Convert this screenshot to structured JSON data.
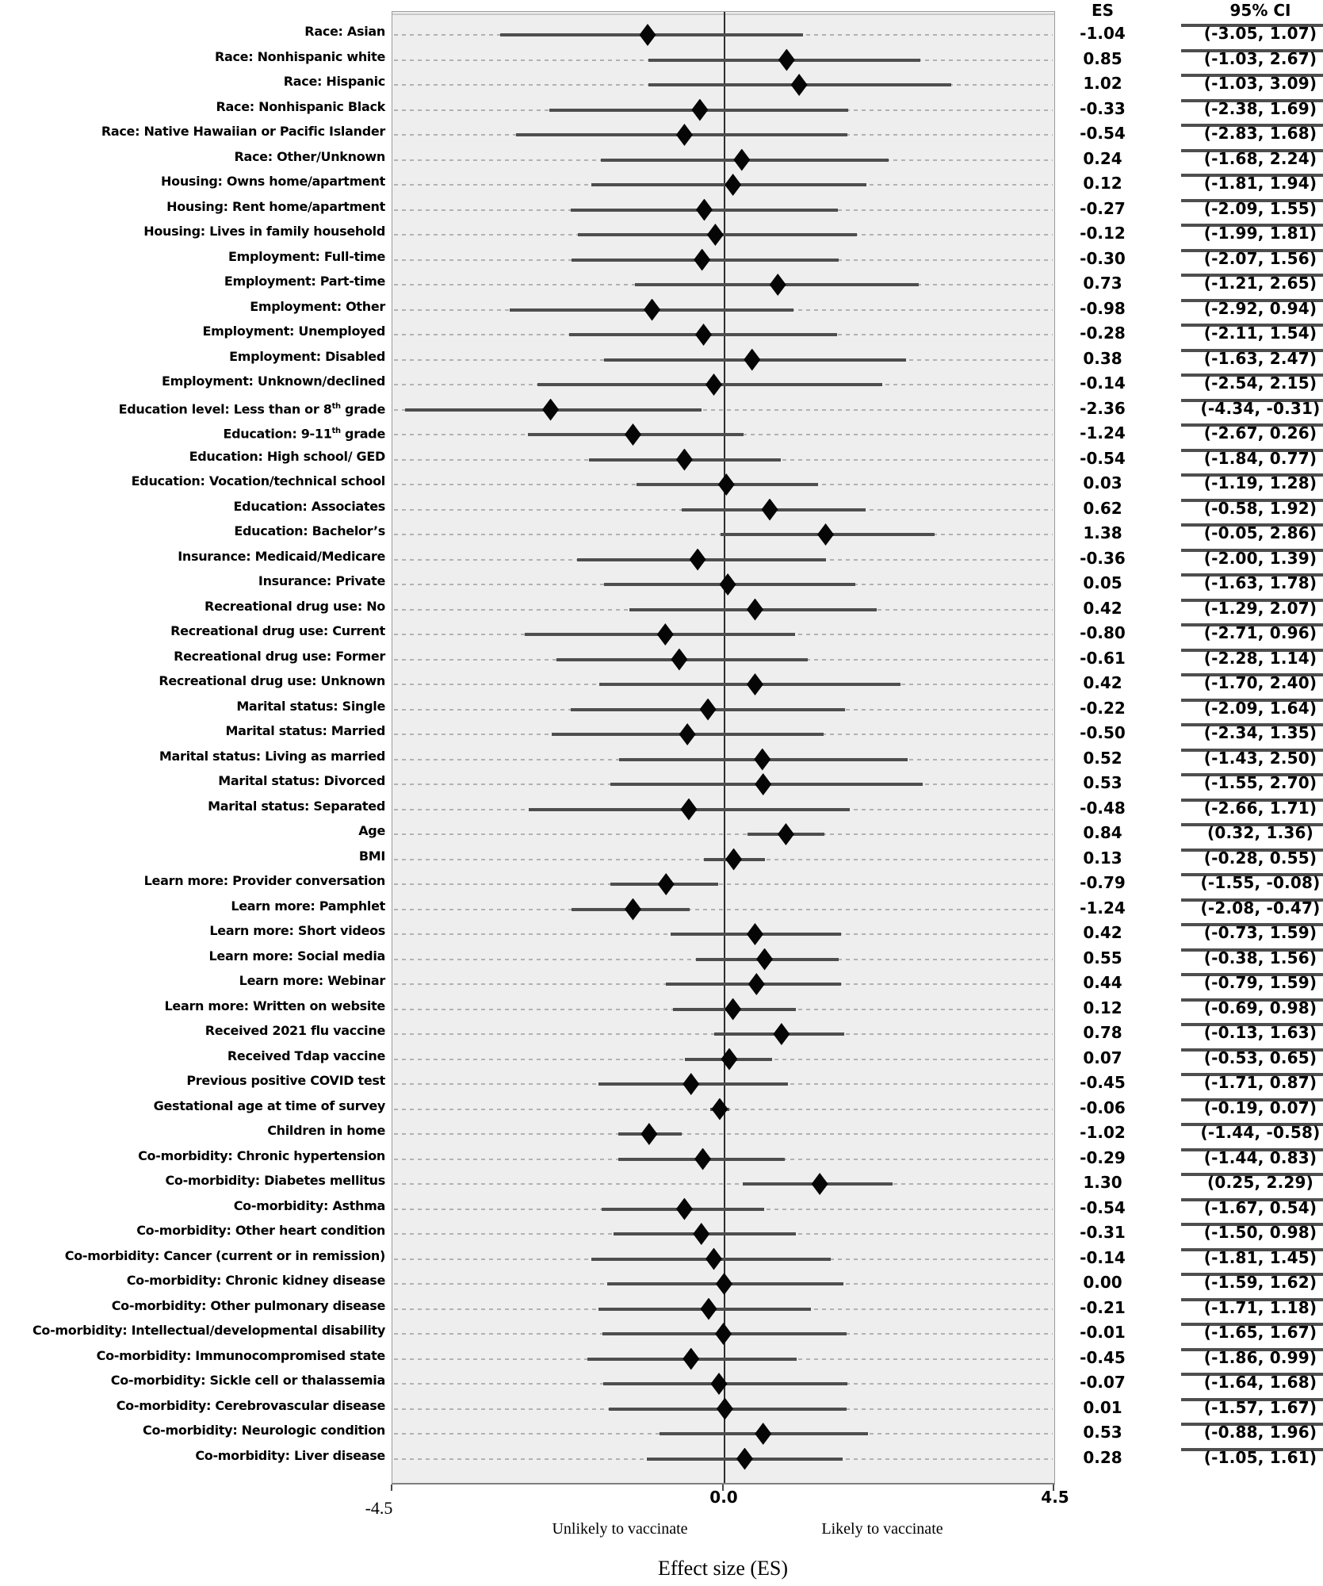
{
  "columns": {
    "es_header": "ES",
    "ci_header": "95% CI"
  },
  "axis": {
    "tick_min": "-4.5",
    "tick_zero": "0.0",
    "tick_max": "4.5",
    "left_annotation": "Unlikely to vaccinate",
    "right_annotation": "Likely to vaccinate",
    "title": "Effect size (ES)"
  },
  "colors": {
    "plot_bg": "#eeeeee",
    "gridline": "#b2b2b2",
    "ci_line": "#4e4e4e",
    "marker": "#060606",
    "zero_line": "#2e2e2e",
    "border": "#9b9b9b"
  },
  "chart_data": {
    "type": "forest",
    "xlabel": "Effect size (ES)",
    "xlim": [
      -4.5,
      4.5
    ],
    "x_ticks": [
      -4.5,
      0.0,
      4.5
    ],
    "grid": "dashed horizontal per row",
    "legend_position": "none",
    "direction_labels": {
      "negative": "Unlikely to vaccinate",
      "positive": "Likely to vaccinate"
    },
    "value_columns": [
      "ES",
      "95% CI"
    ],
    "rows": [
      {
        "label": "Race: Asian",
        "es": -1.04,
        "lo": -3.05,
        "hi": 1.07
      },
      {
        "label": "Race: Nonhispanic white",
        "es": 0.85,
        "lo": -1.03,
        "hi": 2.67
      },
      {
        "label": "Race: Hispanic",
        "es": 1.02,
        "lo": -1.03,
        "hi": 3.09
      },
      {
        "label": "Race: Nonhispanic Black",
        "es": -0.33,
        "lo": -2.38,
        "hi": 1.69
      },
      {
        "label": "Race: Native Hawaiian or Pacific Islander",
        "es": -0.54,
        "lo": -2.83,
        "hi": 1.68
      },
      {
        "label": "Race: Other/Unknown",
        "es": 0.24,
        "lo": -1.68,
        "hi": 2.24
      },
      {
        "label": "Housing: Owns home/apartment",
        "es": 0.12,
        "lo": -1.81,
        "hi": 1.94
      },
      {
        "label": "Housing: Rent home/apartment",
        "es": -0.27,
        "lo": -2.09,
        "hi": 1.55
      },
      {
        "label": "Housing: Lives in family household",
        "es": -0.12,
        "lo": -1.99,
        "hi": 1.81
      },
      {
        "label": "Employment: Full-time",
        "es": -0.3,
        "lo": -2.07,
        "hi": 1.56
      },
      {
        "label": "Employment: Part-time",
        "es": 0.73,
        "lo": -1.21,
        "hi": 2.65
      },
      {
        "label": "Employment: Other",
        "es": -0.98,
        "lo": -2.92,
        "hi": 0.94
      },
      {
        "label": "Employment: Unemployed",
        "es": -0.28,
        "lo": -2.11,
        "hi": 1.54
      },
      {
        "label": "Employment: Disabled",
        "es": 0.38,
        "lo": -1.63,
        "hi": 2.47
      },
      {
        "label": "Employment: Unknown/declined",
        "es": -0.14,
        "lo": -2.54,
        "hi": 2.15
      },
      {
        "label": "Education level: Less than or 8^{th} grade",
        "es": -2.36,
        "lo": -4.34,
        "hi": -0.31
      },
      {
        "label": "Education: 9-11^{th} grade",
        "es": -1.24,
        "lo": -2.67,
        "hi": 0.26
      },
      {
        "label": "Education: High school/ GED",
        "es": -0.54,
        "lo": -1.84,
        "hi": 0.77
      },
      {
        "label": "Education: Vocation/technical school",
        "es": 0.03,
        "lo": -1.19,
        "hi": 1.28
      },
      {
        "label": "Education: Associates",
        "es": 0.62,
        "lo": -0.58,
        "hi": 1.92
      },
      {
        "label": "Education: Bachelor’s",
        "es": 1.38,
        "lo": -0.05,
        "hi": 2.86
      },
      {
        "label": "Insurance: Medicaid/Medicare",
        "es": -0.36,
        "lo": -2.0,
        "hi": 1.39
      },
      {
        "label": "Insurance: Private",
        "es": 0.05,
        "lo": -1.63,
        "hi": 1.78
      },
      {
        "label": "Recreational drug use: No",
        "es": 0.42,
        "lo": -1.29,
        "hi": 2.07
      },
      {
        "label": "Recreational drug use: Current",
        "es": -0.8,
        "lo": -2.71,
        "hi": 0.96
      },
      {
        "label": "Recreational drug use: Former",
        "es": -0.61,
        "lo": -2.28,
        "hi": 1.14
      },
      {
        "label": "Recreational drug use: Unknown",
        "es": 0.42,
        "lo": -1.7,
        "hi": 2.4
      },
      {
        "label": "Marital status: Single",
        "es": -0.22,
        "lo": -2.09,
        "hi": 1.64
      },
      {
        "label": "Marital status: Married",
        "es": -0.5,
        "lo": -2.34,
        "hi": 1.35
      },
      {
        "label": "Marital status: Living as married",
        "es": 0.52,
        "lo": -1.43,
        "hi": 2.5
      },
      {
        "label": "Marital status: Divorced",
        "es": 0.53,
        "lo": -1.55,
        "hi": 2.7
      },
      {
        "label": "Marital status: Separated",
        "es": -0.48,
        "lo": -2.66,
        "hi": 1.71
      },
      {
        "label": "Age",
        "es": 0.84,
        "lo": 0.32,
        "hi": 1.36
      },
      {
        "label": "BMI",
        "es": 0.13,
        "lo": -0.28,
        "hi": 0.55
      },
      {
        "label": "Learn more: Provider conversation",
        "es": -0.79,
        "lo": -1.55,
        "hi": -0.08
      },
      {
        "label": "Learn more: Pamphlet",
        "es": -1.24,
        "lo": -2.08,
        "hi": -0.47
      },
      {
        "label": "Learn more: Short videos",
        "es": 0.42,
        "lo": -0.73,
        "hi": 1.59
      },
      {
        "label": "Learn more: Social media",
        "es": 0.55,
        "lo": -0.38,
        "hi": 1.56
      },
      {
        "label": "Learn more: Webinar",
        "es": 0.44,
        "lo": -0.79,
        "hi": 1.59
      },
      {
        "label": "Learn more: Written on website",
        "es": 0.12,
        "lo": -0.69,
        "hi": 0.98
      },
      {
        "label": "Received 2021 flu vaccine",
        "es": 0.78,
        "lo": -0.13,
        "hi": 1.63
      },
      {
        "label": "Received Tdap vaccine",
        "es": 0.07,
        "lo": -0.53,
        "hi": 0.65
      },
      {
        "label": "Previous positive COVID test",
        "es": -0.45,
        "lo": -1.71,
        "hi": 0.87
      },
      {
        "label": "Gestational age at time of survey",
        "es": -0.06,
        "lo": -0.19,
        "hi": 0.07
      },
      {
        "label": "Children in home",
        "es": -1.02,
        "lo": -1.44,
        "hi": -0.58
      },
      {
        "label": "Co-morbidity: Chronic hypertension",
        "es": -0.29,
        "lo": -1.44,
        "hi": 0.83
      },
      {
        "label": "Co-morbidity: Diabetes mellitus",
        "es": 1.3,
        "lo": 0.25,
        "hi": 2.29
      },
      {
        "label": "Co-morbidity: Asthma",
        "es": -0.54,
        "lo": -1.67,
        "hi": 0.54
      },
      {
        "label": "Co-morbidity: Other heart condition",
        "es": -0.31,
        "lo": -1.5,
        "hi": 0.98
      },
      {
        "label": "Co-morbidity: Cancer (current or in remission)",
        "es": -0.14,
        "lo": -1.81,
        "hi": 1.45
      },
      {
        "label": "Co-morbidity: Chronic kidney disease",
        "es": 0.0,
        "lo": -1.59,
        "hi": 1.62
      },
      {
        "label": "Co-morbidity: Other pulmonary disease",
        "es": -0.21,
        "lo": -1.71,
        "hi": 1.18
      },
      {
        "label": "Co-morbidity: Intellectual/developmental disability",
        "es": -0.01,
        "lo": -1.65,
        "hi": 1.67
      },
      {
        "label": "Co-morbidity: Immunocompromised state",
        "es": -0.45,
        "lo": -1.86,
        "hi": 0.99
      },
      {
        "label": "Co-morbidity: Sickle cell or thalassemia",
        "es": -0.07,
        "lo": -1.64,
        "hi": 1.68
      },
      {
        "label": "Co-morbidity: Cerebrovascular disease",
        "es": 0.01,
        "lo": -1.57,
        "hi": 1.67
      },
      {
        "label": "Co-morbidity: Neurologic condition",
        "es": 0.53,
        "lo": -0.88,
        "hi": 1.96
      },
      {
        "label": "Co-morbidity: Liver disease",
        "es": 0.28,
        "lo": -1.05,
        "hi": 1.61
      }
    ]
  }
}
